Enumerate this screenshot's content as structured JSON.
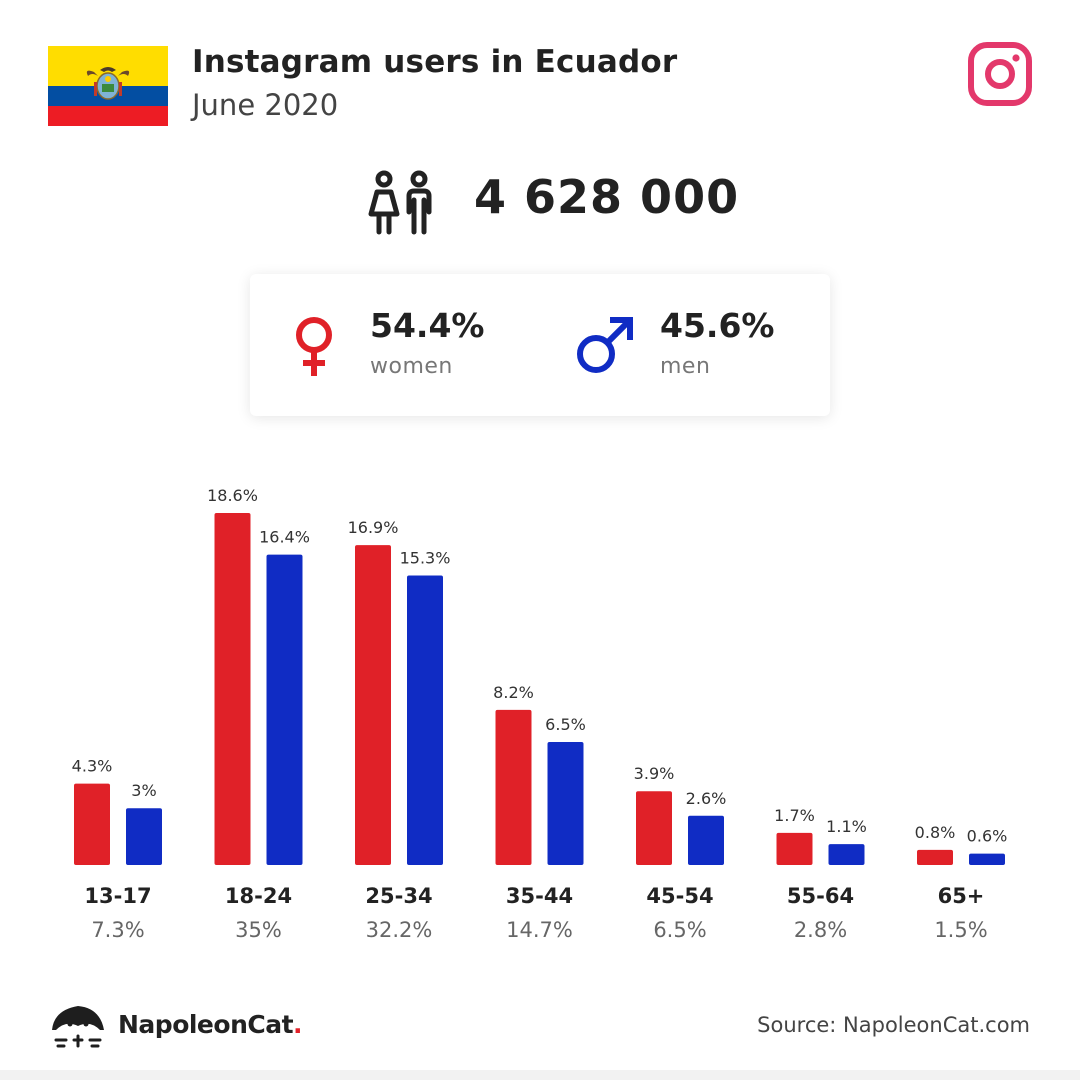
{
  "header": {
    "title": "Instagram users in Ecuador",
    "subtitle": "June 2020"
  },
  "total_users": "4 628 000",
  "gender": {
    "women_pct": "54.4%",
    "women_label": "women",
    "men_pct": "45.6%",
    "men_label": "men"
  },
  "colors": {
    "women": "#e02128",
    "men": "#102cc4",
    "instagram": "#e3386b",
    "flag_yellow": "#ffdd00",
    "flag_blue": "#034ea2",
    "flag_red": "#ed1c24"
  },
  "icons": {
    "flag": "ecuador-flag-icon",
    "platform": "instagram-icon",
    "people": "people-icon",
    "women": "female-symbol-icon",
    "men": "male-symbol-icon",
    "logo": "napoleoncat-logo-icon"
  },
  "chart_data": {
    "type": "bar",
    "categories": [
      "13-17",
      "18-24",
      "25-34",
      "35-44",
      "45-54",
      "55-64",
      "65+"
    ],
    "category_totals": [
      "7.3%",
      "35%",
      "32.2%",
      "14.7%",
      "6.5%",
      "2.8%",
      "1.5%"
    ],
    "series": [
      {
        "name": "women",
        "color": "#e02128",
        "values": [
          4.3,
          18.6,
          16.9,
          8.2,
          3.9,
          1.7,
          0.8
        ],
        "labels": [
          "4.3%",
          "18.6%",
          "16.9%",
          "8.2%",
          "3.9%",
          "1.7%",
          "0.8%"
        ]
      },
      {
        "name": "men",
        "color": "#102cc4",
        "values": [
          3.0,
          16.4,
          15.3,
          6.5,
          2.6,
          1.1,
          0.6
        ],
        "labels": [
          "3%",
          "16.4%",
          "15.3%",
          "6.5%",
          "2.6%",
          "1.1%",
          "0.6%"
        ]
      }
    ],
    "ylim": [
      0,
      18.6
    ],
    "grid": false,
    "legend": "none"
  },
  "footer": {
    "brand": "NapoleonCat",
    "brand_dot": ".",
    "source": "Source: NapoleonCat.com"
  }
}
